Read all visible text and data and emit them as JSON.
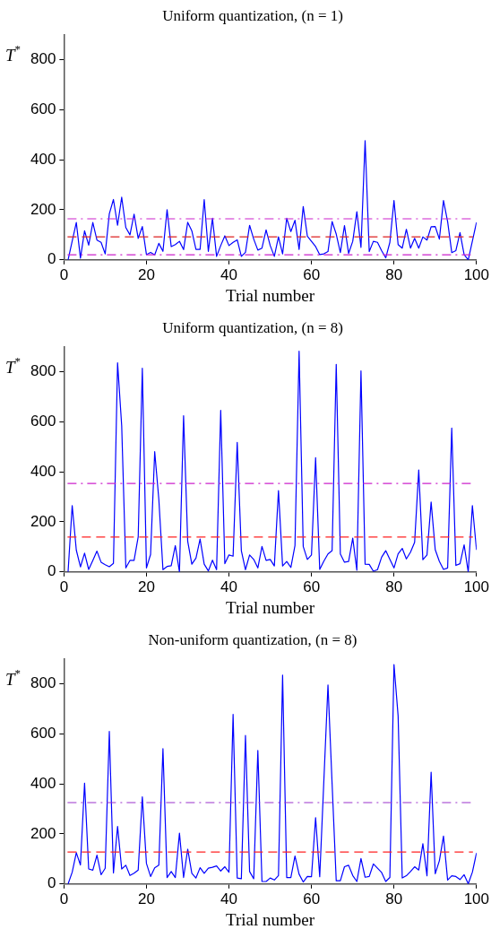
{
  "chart_data": [
    {
      "type": "line",
      "title": "Uniform quantization, (n = 1)",
      "xlabel": "Trial number",
      "ylabel": "T$^{*}$",
      "xlim": [
        0,
        100
      ],
      "xticks": [
        0,
        20,
        40,
        60,
        80,
        100
      ],
      "ylim": [
        0,
        900
      ],
      "yticks": [
        0,
        200,
        400,
        600,
        800
      ],
      "grid": false,
      "legend": false,
      "marker": "none",
      "line_style": "solid",
      "x": [
        1,
        2,
        3,
        4,
        5,
        6,
        7,
        8,
        9,
        10,
        11,
        12,
        13,
        14,
        15,
        16,
        17,
        18,
        19,
        20,
        21,
        22,
        23,
        24,
        25,
        26,
        27,
        28,
        29,
        30,
        31,
        32,
        33,
        34,
        35,
        36,
        37,
        38,
        39,
        40,
        41,
        42,
        43,
        44,
        45,
        46,
        47,
        48,
        49,
        50,
        51,
        52,
        53,
        54,
        55,
        56,
        57,
        58,
        59,
        60,
        61,
        62,
        63,
        64,
        65,
        66,
        67,
        68,
        69,
        70,
        71,
        72,
        73,
        74,
        75,
        76,
        77,
        78,
        79,
        80,
        81,
        82,
        83,
        84,
        85,
        86,
        87,
        88,
        89,
        90,
        91,
        92,
        93,
        94,
        95,
        96,
        97,
        98,
        99,
        100
      ],
      "series": [
        {
          "color": "#0000ff",
          "values": [
            0,
            75,
            149,
            7,
            116,
            59,
            149,
            79,
            70,
            24,
            184,
            241,
            138,
            250,
            129,
            100,
            182,
            86,
            133,
            21,
            30,
            20,
            66,
            34,
            200,
            53,
            61,
            74,
            41,
            150,
            116,
            42,
            42,
            241,
            34,
            166,
            14,
            57,
            96,
            57,
            70,
            80,
            14,
            30,
            138,
            83,
            39,
            47,
            120,
            57,
            14,
            92,
            24,
            166,
            113,
            158,
            42,
            213,
            95,
            74,
            53,
            21,
            24,
            33,
            153,
            103,
            29,
            137,
            26,
            74,
            192,
            50,
            476,
            33,
            74,
            70,
            37,
            8,
            70,
            237,
            61,
            47,
            122,
            47,
            86,
            47,
            92,
            79,
            132,
            133,
            83,
            237,
            153,
            29,
            37,
            109,
            21,
            0,
            75,
            150
          ]
        }
      ],
      "ref_lines": [
        {
          "axis": "y",
          "value": 164,
          "color": "#cc22cc",
          "line_style": "dashdot"
        },
        {
          "axis": "y",
          "value": 92,
          "color": "#dd2222",
          "line_style": "dashed"
        },
        {
          "axis": "y",
          "value": 20,
          "color": "#cc22cc",
          "line_style": "dashdot"
        }
      ]
    },
    {
      "type": "line",
      "title": "Uniform quantization, (n = 8)",
      "xlabel": "Trial number",
      "ylabel": "T$^{*}$",
      "xlim": [
        0,
        100
      ],
      "xticks": [
        0,
        20,
        40,
        60,
        80,
        100
      ],
      "ylim": [
        0,
        900
      ],
      "yticks": [
        0,
        200,
        400,
        600,
        800
      ],
      "grid": false,
      "legend": false,
      "marker": "none",
      "line_style": "solid",
      "x": [
        1,
        2,
        3,
        4,
        5,
        6,
        7,
        8,
        9,
        10,
        11,
        12,
        13,
        14,
        15,
        16,
        17,
        18,
        19,
        20,
        21,
        22,
        23,
        24,
        25,
        26,
        27,
        28,
        29,
        30,
        31,
        32,
        33,
        34,
        35,
        36,
        37,
        38,
        39,
        40,
        41,
        42,
        43,
        44,
        45,
        46,
        47,
        48,
        49,
        50,
        51,
        52,
        53,
        54,
        55,
        56,
        57,
        58,
        59,
        60,
        61,
        62,
        63,
        64,
        65,
        66,
        67,
        68,
        69,
        70,
        71,
        72,
        73,
        74,
        75,
        76,
        77,
        78,
        79,
        80,
        81,
        82,
        83,
        84,
        85,
        86,
        87,
        88,
        89,
        90,
        91,
        92,
        93,
        94,
        95,
        96,
        97,
        98,
        99,
        100
      ],
      "series": [
        {
          "color": "#0000ff",
          "values": [
            0,
            265,
            87,
            20,
            75,
            10,
            46,
            83,
            39,
            29,
            21,
            34,
            835,
            584,
            16,
            46,
            46,
            140,
            813,
            16,
            70,
            480,
            290,
            9,
            22,
            25,
            105,
            0,
            624,
            122,
            31,
            55,
            131,
            31,
            4,
            47,
            9,
            645,
            33,
            68,
            63,
            517,
            85,
            9,
            68,
            50,
            16,
            102,
            46,
            50,
            24,
            325,
            24,
            42,
            18,
            105,
            881,
            102,
            50,
            68,
            456,
            10,
            43,
            72,
            85,
            829,
            72,
            39,
            42,
            135,
            7,
            803,
            31,
            30,
            3,
            9,
            59,
            85,
            50,
            16,
            72,
            94,
            52,
            79,
            118,
            407,
            49,
            68,
            279,
            89,
            42,
            10,
            16,
            574,
            26,
            33,
            108,
            0,
            265,
            88
          ]
        }
      ],
      "ref_lines": [
        {
          "axis": "y",
          "value": 353,
          "color": "#cc22cc",
          "line_style": "dashdot"
        },
        {
          "axis": "y",
          "value": 139,
          "color": "#ff2222",
          "line_style": "dashed"
        }
      ]
    },
    {
      "type": "line",
      "title": "Non-uniform quantization, (n = 8)",
      "xlabel": "Trial number",
      "ylabel": "T$^{*}$",
      "xlim": [
        0,
        100
      ],
      "xticks": [
        0,
        20,
        40,
        60,
        80,
        100
      ],
      "ylim": [
        0,
        900
      ],
      "yticks": [
        0,
        200,
        400,
        600,
        800
      ],
      "grid": false,
      "legend": false,
      "marker": "none",
      "line_style": "solid",
      "x": [
        1,
        2,
        3,
        4,
        5,
        6,
        7,
        8,
        9,
        10,
        11,
        12,
        13,
        14,
        15,
        16,
        17,
        18,
        19,
        20,
        21,
        22,
        23,
        24,
        25,
        26,
        27,
        28,
        29,
        30,
        31,
        32,
        33,
        34,
        35,
        36,
        37,
        38,
        39,
        40,
        41,
        42,
        43,
        44,
        45,
        46,
        47,
        48,
        49,
        50,
        51,
        52,
        53,
        54,
        55,
        56,
        57,
        58,
        59,
        60,
        61,
        62,
        63,
        64,
        65,
        66,
        67,
        68,
        69,
        70,
        71,
        72,
        73,
        74,
        75,
        76,
        77,
        78,
        79,
        80,
        81,
        82,
        83,
        84,
        85,
        86,
        87,
        88,
        89,
        90,
        91,
        92,
        93,
        94,
        95,
        96,
        97,
        98,
        99,
        100
      ],
      "series": [
        {
          "color": "#0000ff",
          "values": [
            0,
            47,
            125,
            76,
            403,
            60,
            55,
            115,
            37,
            63,
            609,
            44,
            230,
            60,
            75,
            34,
            43,
            56,
            348,
            82,
            30,
            65,
            75,
            540,
            26,
            50,
            26,
            203,
            26,
            139,
            43,
            24,
            65,
            43,
            63,
            67,
            72,
            52,
            69,
            47,
            677,
            24,
            21,
            593,
            50,
            21,
            533,
            10,
            10,
            24,
            16,
            34,
            834,
            26,
            26,
            112,
            39,
            8,
            30,
            29,
            265,
            29,
            412,
            795,
            400,
            13,
            13,
            69,
            75,
            34,
            10,
            102,
            27,
            30,
            80,
            63,
            46,
            10,
            26,
            876,
            671,
            24,
            33,
            50,
            69,
            56,
            161,
            33,
            446,
            41,
            93,
            191,
            16,
            33,
            30,
            18,
            37,
            1,
            47,
            124
          ]
        }
      ],
      "ref_lines": [
        {
          "axis": "y",
          "value": 325,
          "color": "#9933cc",
          "line_style": "dashdot"
        },
        {
          "axis": "y",
          "value": 128,
          "color": "#ff2222",
          "line_style": "dashed"
        }
      ]
    }
  ]
}
